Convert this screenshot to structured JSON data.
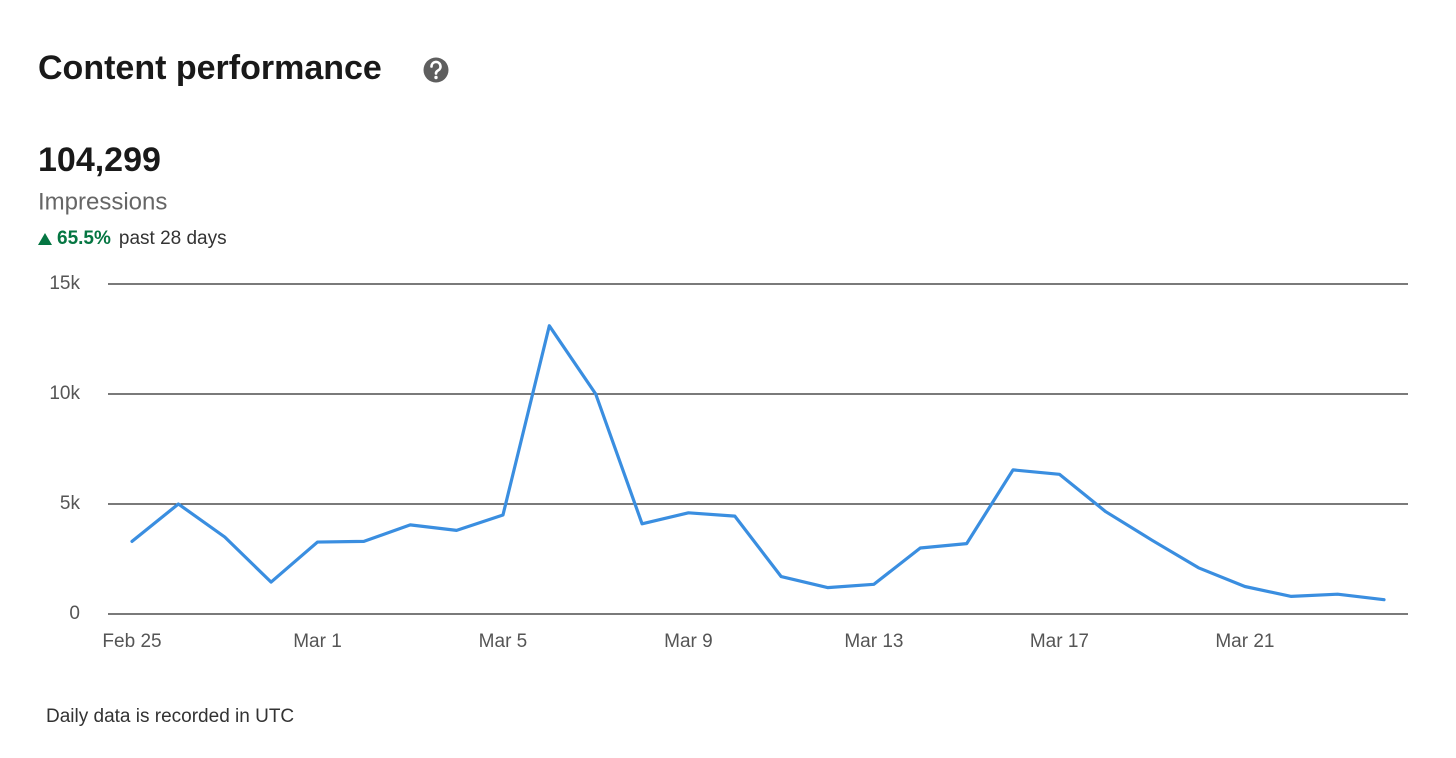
{
  "header": {
    "title": "Content performance"
  },
  "metric": {
    "value": "104,299",
    "label": "Impressions",
    "change": "65.5%",
    "period": "past 28 days"
  },
  "footnote": "Daily data is recorded in UTC",
  "chart_data": {
    "type": "line",
    "categories": [
      "Feb 25",
      null,
      null,
      null,
      "Mar 1",
      null,
      null,
      null,
      "Mar 5",
      null,
      null,
      null,
      "Mar 9",
      null,
      null,
      null,
      "Mar 13",
      null,
      null,
      null,
      "Mar 17",
      null,
      null,
      null,
      "Mar 21",
      null,
      null,
      null
    ],
    "series": [
      {
        "name": "Impressions",
        "color": "#3a8ee0",
        "values": [
          3300,
          5000,
          3500,
          1450,
          3270,
          3300,
          4050,
          3800,
          4500,
          13100,
          10000,
          4100,
          4600,
          4450,
          1700,
          1200,
          1350,
          3000,
          3200,
          6550,
          6350,
          4650,
          3350,
          2100,
          1250,
          800,
          900,
          650
        ]
      }
    ],
    "ylim": [
      0,
      15000
    ],
    "yticks": [
      0,
      {
        "value": 5000,
        "label": "5k"
      },
      {
        "value": 10000,
        "label": "10k"
      },
      {
        "value": 15000,
        "label": "15k"
      }
    ],
    "grid": true
  }
}
